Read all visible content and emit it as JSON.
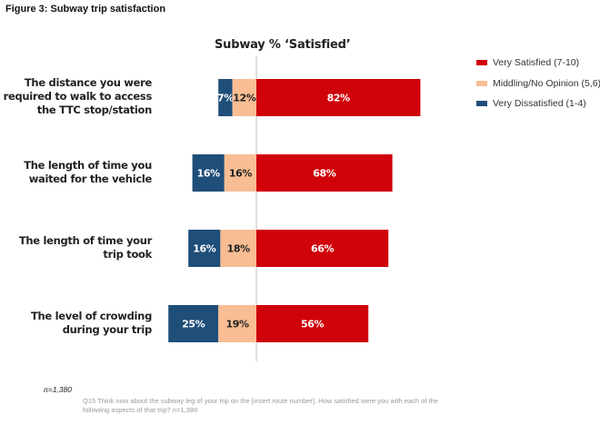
{
  "figure_title": "Figure 3: Subway trip satisfaction",
  "footnote_n": "n=1,380",
  "footnote_question": "Q15 Think now about the subway  leg of your trip on the [insert route number]. How satisfied were you with each of the following aspects of that trip? n=1,380",
  "chart_data": {
    "type": "bar",
    "orientation": "horizontal",
    "stacked": "diverging",
    "title": "Subway % ‘Satisfied’",
    "xlabel": "",
    "ylabel": "",
    "grid": false,
    "legend_position": "right",
    "categories": [
      "The distance you were required to walk to access the TTC stop/station",
      "The length of time you waited for the vehicle",
      "The length of time your trip took",
      "The level of crowding during your trip"
    ],
    "category_lines": [
      [
        "The distance you were",
        "required to walk to access",
        "the TTC stop/station"
      ],
      [
        "The length of time you",
        "waited for the vehicle"
      ],
      [
        "The length of time your",
        "trip took"
      ],
      [
        "The level of crowding",
        "during your trip"
      ]
    ],
    "series": [
      {
        "name": "Very Dissatisfied (1-4)",
        "color": "#1f4e79",
        "label_color": "#ffffff",
        "side": "left",
        "values": [
          7,
          16,
          16,
          25
        ]
      },
      {
        "name": "Middling/No Opinion (5,6)",
        "color": "#f8bd93",
        "label_color": "#222222",
        "side": "left",
        "values": [
          12,
          16,
          18,
          19
        ]
      },
      {
        "name": "Very Satisfied (7-10)",
        "color": "#d0020a",
        "label_color": "#ffffff",
        "side": "right",
        "values": [
          82,
          68,
          66,
          56
        ]
      }
    ],
    "value_suffix": "%",
    "legend": [
      {
        "label": "Very Satisfied (7-10)",
        "color": "#d0020a"
      },
      {
        "label": "Middling/No Opinion (5,6)",
        "color": "#f8bd93"
      },
      {
        "label": "Very Dissatisfied (1-4)",
        "color": "#1f4e79"
      }
    ]
  }
}
